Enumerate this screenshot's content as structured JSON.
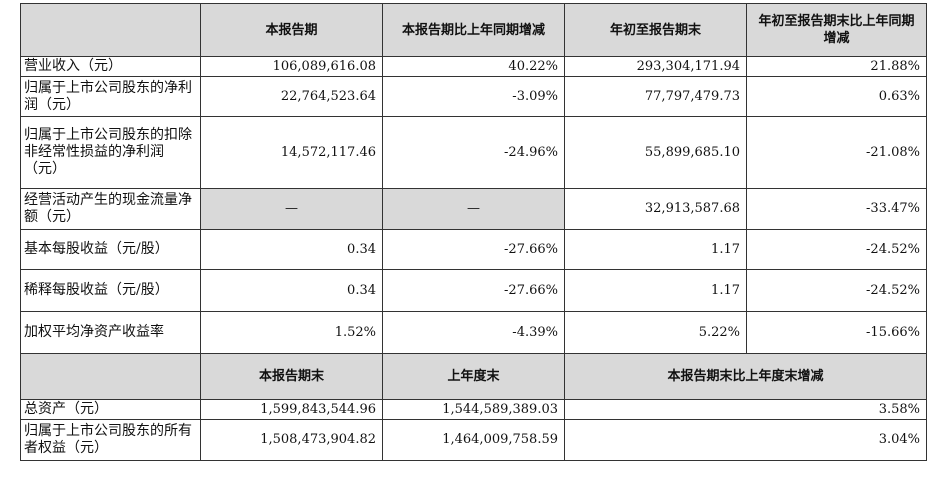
{
  "header1": {
    "col1": "本报告期",
    "col2": "本报告期比上年同期增减",
    "col3": "年初至报告期末",
    "col4": "年初至报告期末比上年同期增减"
  },
  "rows": [
    {
      "label": "营业收入（元）",
      "v1": "106,089,616.08",
      "v2": "40.22%",
      "v3": "293,304,171.94",
      "v4": "21.88%"
    },
    {
      "label": "归属于上市公司股东的净利润（元）",
      "v1": "22,764,523.64",
      "v2": "-3.09%",
      "v3": "77,797,479.73",
      "v4": "0.63%"
    },
    {
      "label": "归属于上市公司股东的扣除非经常性损益的净利润（元）",
      "v1": "14,572,117.46",
      "v2": "-24.96%",
      "v3": "55,899,685.10",
      "v4": "-21.08%"
    },
    {
      "label": "经营活动产生的现金流量净额（元）",
      "v1": "—",
      "v2": "—",
      "v3": "32,913,587.68",
      "v4": "-33.47%"
    },
    {
      "label": "基本每股收益（元/股）",
      "v1": "0.34",
      "v2": "-27.66%",
      "v3": "1.17",
      "v4": "-24.52%"
    },
    {
      "label": "稀释每股收益（元/股）",
      "v1": "0.34",
      "v2": "-27.66%",
      "v3": "1.17",
      "v4": "-24.52%"
    },
    {
      "label": "加权平均净资产收益率",
      "v1": "1.52%",
      "v2": "-4.39%",
      "v3": "5.22%",
      "v4": "-15.66%"
    }
  ],
  "header2": {
    "col1": "本报告期末",
    "col2": "上年度末",
    "col3": "本报告期末比上年度末增减"
  },
  "rows2": [
    {
      "label": "总资产（元）",
      "v1": "1,599,843,544.96",
      "v2": "1,544,589,389.03",
      "v3": "3.58%"
    },
    {
      "label": "归属于上市公司股东的所有者权益（元）",
      "v1": "1,508,473,904.82",
      "v2": "1,464,009,758.59",
      "v3": "3.04%"
    }
  ]
}
